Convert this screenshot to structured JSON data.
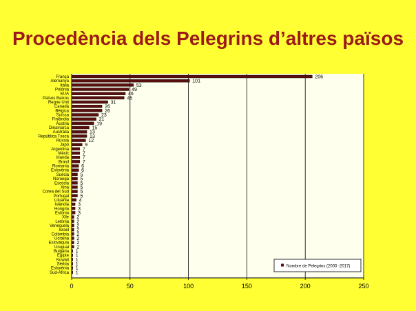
{
  "chart_data": {
    "type": "bar",
    "orientation": "horizontal",
    "title": "Procedència dels Pelegrins d’altres països",
    "xlabel": "",
    "ylabel": "",
    "xlim": [
      0,
      250
    ],
    "xticks": [
      0,
      50,
      100,
      150,
      200,
      250
    ],
    "grid": true,
    "legend_position": "bottom-right",
    "bar_color": "#5a0f0f",
    "categories": [
      "França",
      "Alemanya",
      "Itàlia",
      "Polònia",
      "EUA",
      "Països Baixos",
      "Regne Unit",
      "Canadà",
      "Bèlgica",
      "Suïssa",
      "Finlàndia",
      "Àustria",
      "Dinamarca",
      "Austràlia",
      "República Txeca",
      "Rússia",
      "Japó",
      "Argentina",
      "Mèxic",
      "Irlanda",
      "Brasil",
      "Romania",
      "Eslovènia",
      "Suècia",
      "Noruega",
      "Escòcia",
      "Xina",
      "Corea del Sud",
      "Portugal",
      "Lituània",
      "Islàndia",
      "Hongria",
      "Estònia",
      "Xile",
      "Letònia",
      "Veneçuela",
      "Israel",
      "Colòmbia",
      "Ucraïna",
      "Eslovàquia",
      "Uruguai",
      "Bulgària",
      "Egipte",
      "Kuwait",
      "Sèrbia",
      "Eslovènia",
      "Sud-Àfrica"
    ],
    "series": [
      {
        "name": "Nombre de Pelegrins (2000 -2017)",
        "values": [
          206,
          101,
          53,
          49,
          46,
          45,
          31,
          26,
          26,
          23,
          21,
          19,
          15,
          13,
          13,
          12,
          9,
          7,
          7,
          7,
          7,
          6,
          6,
          5,
          5,
          5,
          5,
          5,
          5,
          4,
          3,
          3,
          3,
          2,
          2,
          2,
          2,
          2,
          2,
          2,
          2,
          1,
          1,
          1,
          1,
          1,
          1
        ]
      }
    ]
  }
}
